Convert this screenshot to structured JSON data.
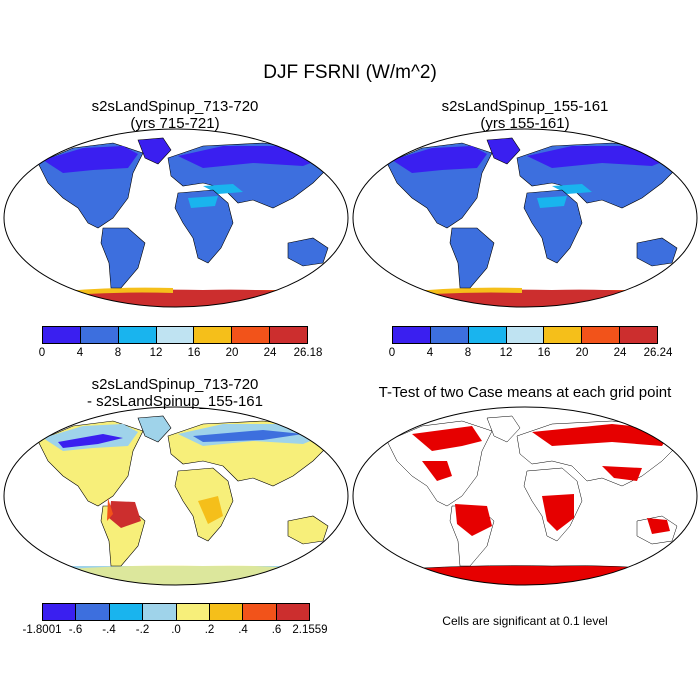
{
  "title": "DJF FSRNI (W/m^2)",
  "panels": {
    "top_left": {
      "title_line1": "s2sLandSpinup_713-720",
      "title_line2": "(yrs 715-721)",
      "colorbar": {
        "colors": [
          "#3a1ff0",
          "#3d6fde",
          "#19b4ee",
          "#bfe3f2",
          "#f5bf1a",
          "#f2531a",
          "#cc2e2e"
        ],
        "ticks": [
          "0",
          "4",
          "8",
          "12",
          "16",
          "20",
          "24",
          "26.18"
        ]
      }
    },
    "top_right": {
      "title_line1": "s2sLandSpinup_155-161",
      "title_line2": "(yrs 155-161)",
      "colorbar": {
        "colors": [
          "#3a1ff0",
          "#3d6fde",
          "#19b4ee",
          "#bfe3f2",
          "#f5bf1a",
          "#f2531a",
          "#cc2e2e"
        ],
        "ticks": [
          "0",
          "4",
          "8",
          "12",
          "16",
          "20",
          "24",
          "26.24"
        ]
      }
    },
    "bottom_left": {
      "title_line1": "s2sLandSpinup_713-720",
      "title_line2": "- s2sLandSpinup_155-161",
      "colorbar": {
        "colors": [
          "#3a1ff0",
          "#3d6fde",
          "#19b4ee",
          "#9fd3ea",
          "#f7ef7a",
          "#f5bf1a",
          "#f2531a",
          "#cc2e2e"
        ],
        "ticks": [
          "-1.8001",
          "-.6",
          "-.4",
          "-.2",
          ".0",
          ".2",
          ".4",
          ".6",
          "2.1559"
        ]
      }
    },
    "bottom_right": {
      "title_line1": "T-Test of two Case means at each grid point",
      "note": "Cells are significant at 0.1 level",
      "significant_color": "#e60000"
    }
  }
}
